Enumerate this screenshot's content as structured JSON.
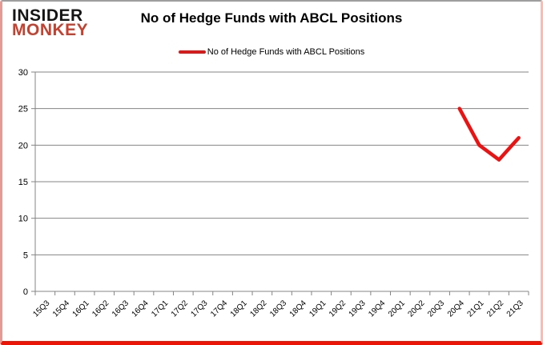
{
  "logo": {
    "line1": "INSIDER",
    "line2": "MONKEY",
    "line1_color": "#151515",
    "line2_color": "#c7402e"
  },
  "header": {
    "title": "No of Hedge Funds with ABCL Positions"
  },
  "legend": {
    "label": "No of Hedge Funds with ABCL Positions",
    "swatch_color": "#ee1111"
  },
  "frame": {
    "bottom_border_color": "#ea1507",
    "top_border_color": "#9e9e9e",
    "side_border_color": "#f3bdb8"
  },
  "chart_data": {
    "type": "line",
    "title": "No of Hedge Funds with ABCL Positions",
    "categories": [
      "15Q3",
      "15Q4",
      "16Q1",
      "16Q2",
      "16Q3",
      "16Q4",
      "17Q1",
      "17Q2",
      "17Q3",
      "17Q4",
      "18Q1",
      "18Q2",
      "18Q3",
      "18Q4",
      "19Q1",
      "19Q2",
      "19Q3",
      "19Q4",
      "20Q1",
      "20Q2",
      "20Q3",
      "20Q4",
      "21Q1",
      "21Q2",
      "21Q3"
    ],
    "series": [
      {
        "name": "No of Hedge Funds with ABCL Positions",
        "color": "#ee1111",
        "values": [
          null,
          null,
          null,
          null,
          null,
          null,
          null,
          null,
          null,
          null,
          null,
          null,
          null,
          null,
          null,
          null,
          null,
          null,
          null,
          null,
          null,
          25,
          20,
          18,
          21
        ]
      }
    ],
    "ylim": [
      0,
      30
    ],
    "ytick_step": 5,
    "ytick_labels": [
      "0",
      "5",
      "10",
      "15",
      "20",
      "25",
      "30"
    ],
    "xlabel": "",
    "ylabel": "",
    "grid": true,
    "gridline_color": "#848484",
    "axis_color": "#848484",
    "tick_label_color": "#000000",
    "legend_position": "top"
  }
}
